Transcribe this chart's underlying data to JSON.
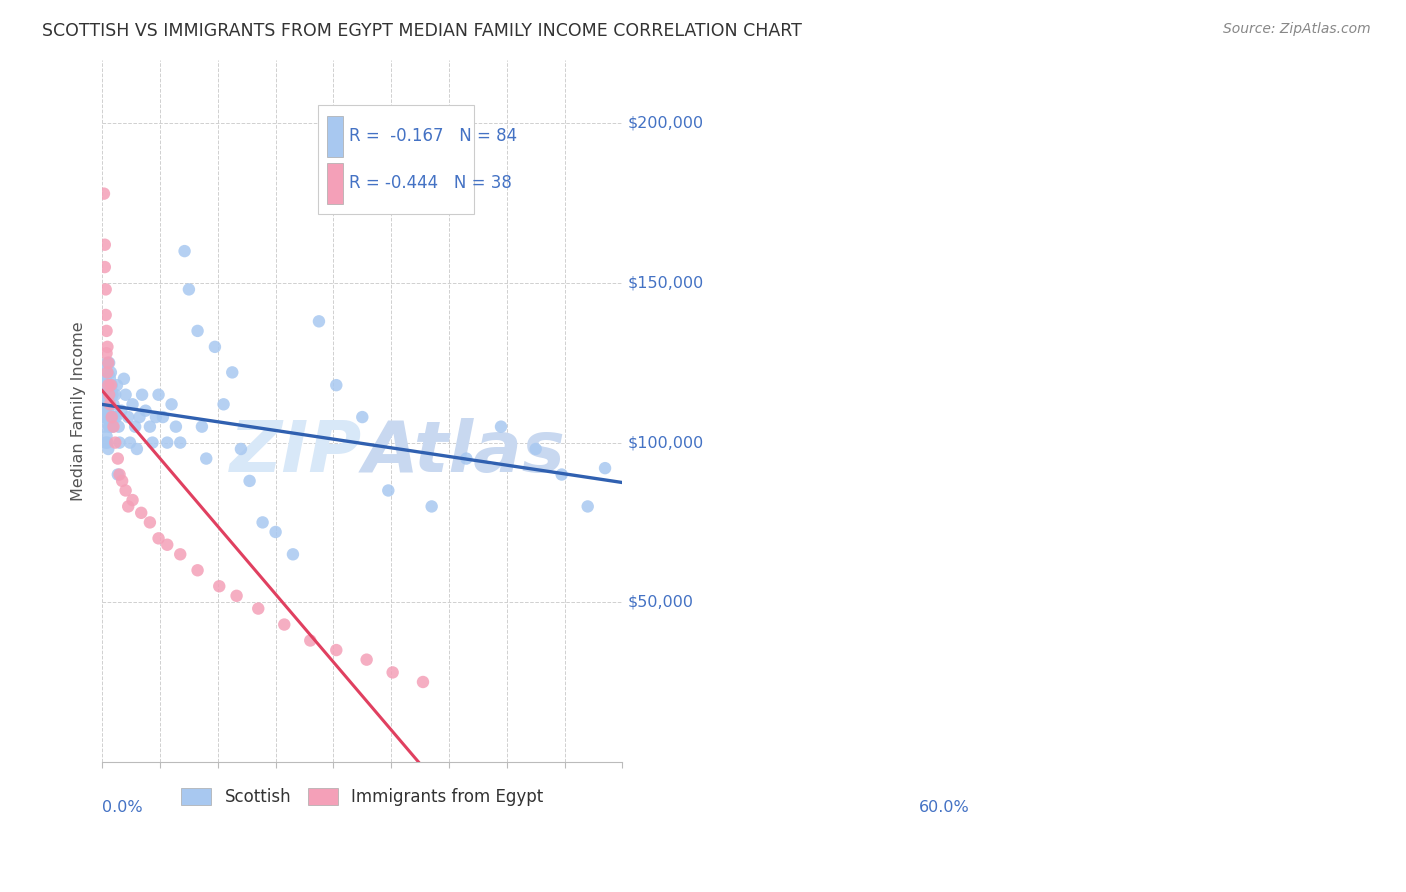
{
  "title": "SCOTTISH VS IMMIGRANTS FROM EGYPT MEDIAN FAMILY INCOME CORRELATION CHART",
  "source": "Source: ZipAtlas.com",
  "ylabel": "Median Family Income",
  "xlim": [
    0.0,
    0.6
  ],
  "ylim": [
    0,
    220000
  ],
  "yticks": [
    0,
    50000,
    100000,
    150000,
    200000
  ],
  "ytick_labels": [
    "",
    "$50,000",
    "$100,000",
    "$150,000",
    "$200,000"
  ],
  "legend_label1": "Scottish",
  "legend_label2": "Immigrants from Egypt",
  "blue_color": "#A8C8F0",
  "pink_color": "#F4A0B8",
  "blue_line_color": "#3060B0",
  "pink_line_color": "#E04060",
  "legend_text_color": "#4472C4",
  "watermark_color": "#D8E8F8",
  "scottish_x": [
    0.001,
    0.002,
    0.002,
    0.003,
    0.003,
    0.003,
    0.004,
    0.004,
    0.004,
    0.005,
    0.005,
    0.005,
    0.005,
    0.006,
    0.006,
    0.006,
    0.006,
    0.007,
    0.007,
    0.007,
    0.008,
    0.008,
    0.008,
    0.009,
    0.009,
    0.01,
    0.01,
    0.01,
    0.011,
    0.011,
    0.012,
    0.012,
    0.013,
    0.014,
    0.015,
    0.016,
    0.017,
    0.018,
    0.019,
    0.02,
    0.022,
    0.025,
    0.027,
    0.03,
    0.032,
    0.035,
    0.038,
    0.04,
    0.043,
    0.046,
    0.05,
    0.055,
    0.058,
    0.062,
    0.065,
    0.07,
    0.075,
    0.08,
    0.085,
    0.09,
    0.095,
    0.1,
    0.11,
    0.115,
    0.12,
    0.13,
    0.14,
    0.15,
    0.16,
    0.17,
    0.185,
    0.2,
    0.22,
    0.25,
    0.27,
    0.3,
    0.33,
    0.38,
    0.42,
    0.46,
    0.5,
    0.53,
    0.56,
    0.58
  ],
  "scottish_y": [
    120000,
    115000,
    108000,
    118000,
    112000,
    105000,
    120000,
    110000,
    100000,
    118000,
    112000,
    108000,
    102000,
    125000,
    115000,
    108000,
    100000,
    118000,
    110000,
    98000,
    125000,
    115000,
    105000,
    118000,
    105000,
    122000,
    115000,
    108000,
    118000,
    108000,
    115000,
    105000,
    112000,
    108000,
    115000,
    108000,
    118000,
    90000,
    105000,
    100000,
    110000,
    120000,
    115000,
    108000,
    100000,
    112000,
    105000,
    98000,
    108000,
    115000,
    110000,
    105000,
    100000,
    108000,
    115000,
    108000,
    100000,
    112000,
    105000,
    100000,
    160000,
    148000,
    135000,
    105000,
    95000,
    130000,
    112000,
    122000,
    98000,
    88000,
    75000,
    72000,
    65000,
    138000,
    118000,
    108000,
    85000,
    80000,
    95000,
    105000,
    98000,
    90000,
    80000,
    92000
  ],
  "egypt_x": [
    0.002,
    0.003,
    0.003,
    0.004,
    0.004,
    0.005,
    0.005,
    0.006,
    0.006,
    0.007,
    0.007,
    0.008,
    0.009,
    0.01,
    0.011,
    0.013,
    0.015,
    0.018,
    0.02,
    0.023,
    0.027,
    0.03,
    0.035,
    0.045,
    0.055,
    0.065,
    0.075,
    0.09,
    0.11,
    0.135,
    0.155,
    0.18,
    0.21,
    0.24,
    0.27,
    0.305,
    0.335,
    0.37
  ],
  "egypt_y": [
    178000,
    162000,
    155000,
    148000,
    140000,
    135000,
    128000,
    130000,
    122000,
    125000,
    118000,
    115000,
    112000,
    118000,
    108000,
    105000,
    100000,
    95000,
    90000,
    88000,
    85000,
    80000,
    82000,
    78000,
    75000,
    70000,
    68000,
    65000,
    60000,
    55000,
    52000,
    48000,
    43000,
    38000,
    35000,
    32000,
    28000,
    25000
  ],
  "scottish_bubble_size": 80,
  "egypt_bubble_size": 80,
  "big_bubble_idx": 0,
  "big_bubble_size": 350
}
